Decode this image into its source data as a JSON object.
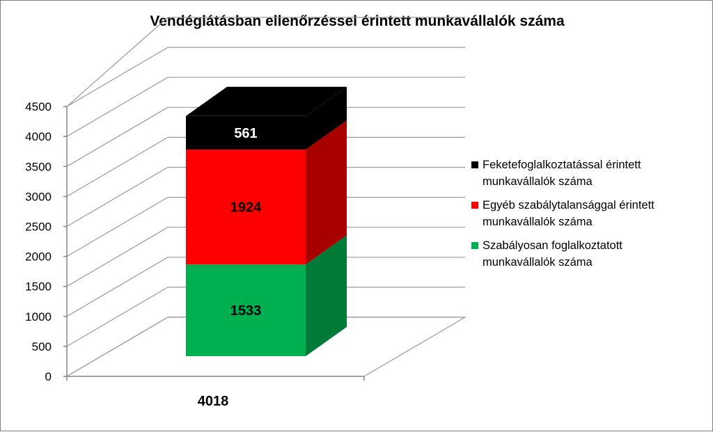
{
  "chart_data": {
    "type": "bar",
    "title": "Vendéglátásban ellenőrzéssel érintett munkavállalók száma",
    "categories": [
      "4018"
    ],
    "ylim": [
      0,
      4500
    ],
    "yticks": [
      0,
      500,
      1000,
      1500,
      2000,
      2500,
      3000,
      3500,
      4000,
      4500
    ],
    "stacked": true,
    "grid": true,
    "legend_position": "right",
    "series": [
      {
        "name": "Szabályosan foglalkoztatott munkavállalók száma",
        "values": [
          1533
        ],
        "color": "#00b050",
        "side_color": "#007a37"
      },
      {
        "name": "Egyéb szabálytalansággal érintett munkavállalók száma",
        "values": [
          1924
        ],
        "color": "#ff0000",
        "side_color": "#a80000"
      },
      {
        "name": "Feketefoglalkoztatással érintett munkavállalók száma",
        "values": [
          561
        ],
        "color": "#000000",
        "side_color": "#000000"
      }
    ],
    "data_label_colors": [
      "#000000",
      "#000000",
      "#ffffff"
    ]
  },
  "legend": {
    "items": [
      {
        "label": "Feketefoglalkoztatással érintett\nmunkavállalók száma",
        "color": "#000000"
      },
      {
        "label": "Egyéb szabálytalansággal érintett\nmunkavállalók száma",
        "color": "#ff0000"
      },
      {
        "label": "Szabályosan foglalkoztatott\nmunkavállalók száma",
        "color": "#00b050"
      }
    ]
  }
}
